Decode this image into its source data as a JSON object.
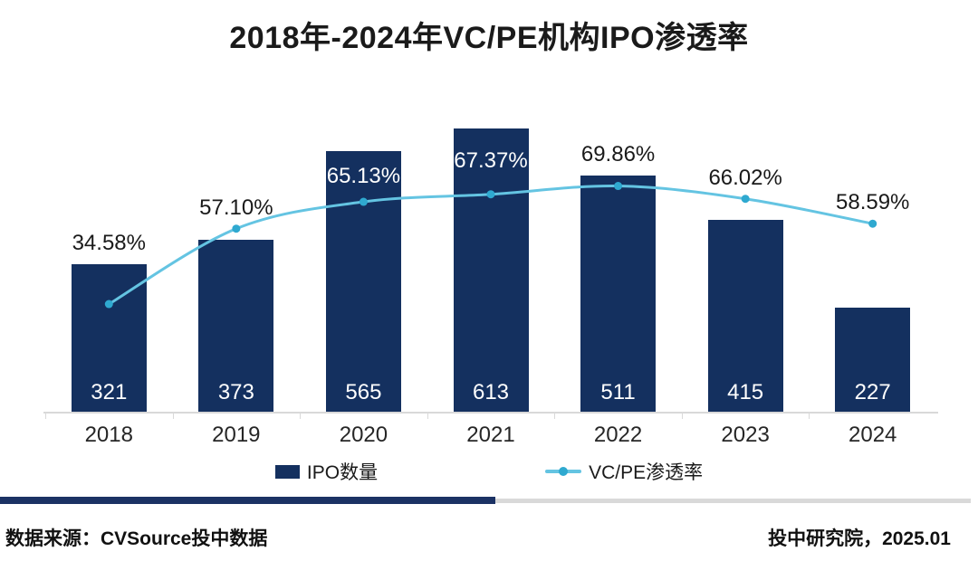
{
  "title": "2018年-2024年VC/PE机构IPO渗透率",
  "legend": {
    "bars_label": "IPO数量",
    "line_label": "VC/PE渗透率"
  },
  "footer": {
    "source": "数据来源：CVSource投中数据",
    "publisher": "投中研究院，2025.01"
  },
  "colors": {
    "bar": "#14305f",
    "line": "#64c4e2",
    "marker": "#2fa9d0",
    "axis": "#d9d9d9",
    "divider_navy": "#1b3264",
    "divider_gray": "#d9d9d9",
    "label_dark": "#1a1a1a",
    "label_light": "#ffffff",
    "title_color": "#1a1a1a"
  },
  "chart_data": {
    "type": "bar",
    "subtype": "bar-line-combo",
    "title": "2018年-2024年VC/PE机构IPO渗透率",
    "categories": [
      "2018",
      "2019",
      "2020",
      "2021",
      "2022",
      "2023",
      "2024"
    ],
    "series": [
      {
        "name": "IPO数量",
        "type": "bar",
        "values": [
          321,
          373,
          565,
          613,
          511,
          415,
          227
        ],
        "labels": [
          "321",
          "373",
          "565",
          "613",
          "511",
          "415",
          "227"
        ]
      },
      {
        "name": "VC/PE渗透率",
        "type": "line",
        "unit": "%",
        "values": [
          34.58,
          57.1,
          65.13,
          67.37,
          69.86,
          66.02,
          58.59
        ],
        "labels": [
          "34.58%",
          "57.10%",
          "65.13%",
          "67.37%",
          "69.86%",
          "66.02%",
          "58.59%"
        ],
        "label_inside_bar": [
          false,
          false,
          true,
          true,
          false,
          false,
          false
        ]
      }
    ],
    "xlabel": "",
    "ylabel": "",
    "grid": false,
    "legend_position": "bottom"
  }
}
